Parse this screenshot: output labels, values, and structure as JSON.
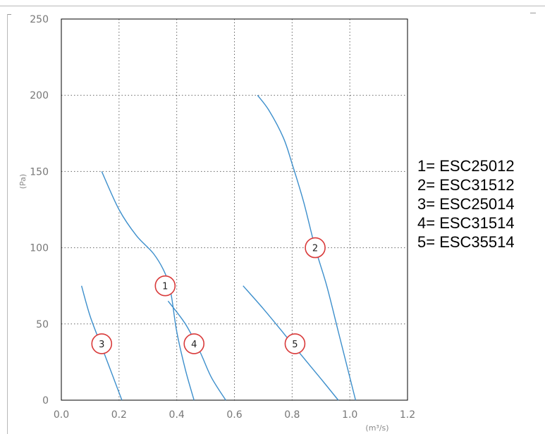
{
  "chart_data": {
    "type": "line",
    "xlabel": "(m³/s)",
    "ylabel": "(Pa)",
    "xlim": [
      0.0,
      1.2
    ],
    "ylim": [
      0,
      250
    ],
    "xticks": [
      "0.0",
      "0.2",
      "0.4",
      "0.6",
      "0.8",
      "1.0",
      "1.2"
    ],
    "yticks": [
      "0",
      "50",
      "100",
      "150",
      "200",
      "250"
    ],
    "grid": true,
    "line_color": "#3d8fcc",
    "marker_color": "#d93a3a",
    "series": [
      {
        "name": "1",
        "x": [
          0.14,
          0.2,
          0.26,
          0.32,
          0.36,
          0.38,
          0.4,
          0.43,
          0.46
        ],
        "y": [
          150,
          125,
          108,
          96,
          83,
          70,
          45,
          20,
          0
        ],
        "marker_at": [
          0.36,
          75
        ]
      },
      {
        "name": "2",
        "x": [
          0.68,
          0.72,
          0.77,
          0.8,
          0.84,
          0.88,
          0.92,
          0.96,
          1.0,
          1.02
        ],
        "y": [
          200,
          190,
          172,
          155,
          130,
          100,
          75,
          45,
          15,
          0
        ],
        "marker_at": [
          0.88,
          100
        ]
      },
      {
        "name": "3",
        "x": [
          0.07,
          0.1,
          0.14,
          0.18,
          0.21
        ],
        "y": [
          75,
          55,
          35,
          15,
          0
        ],
        "marker_at": [
          0.14,
          37
        ]
      },
      {
        "name": "4",
        "x": [
          0.37,
          0.43,
          0.48,
          0.52,
          0.57
        ],
        "y": [
          65,
          50,
          32,
          15,
          0
        ],
        "marker_at": [
          0.46,
          37
        ]
      },
      {
        "name": "5",
        "x": [
          0.63,
          0.7,
          0.77,
          0.83,
          0.9,
          0.96
        ],
        "y": [
          75,
          60,
          44,
          30,
          14,
          0
        ],
        "marker_at": [
          0.81,
          37
        ]
      }
    ]
  },
  "legend": {
    "items": [
      "1= ESC25012",
      "2= ESC31512",
      "3= ESC25014",
      "4= ESC31514",
      "5= ESC35514"
    ]
  }
}
